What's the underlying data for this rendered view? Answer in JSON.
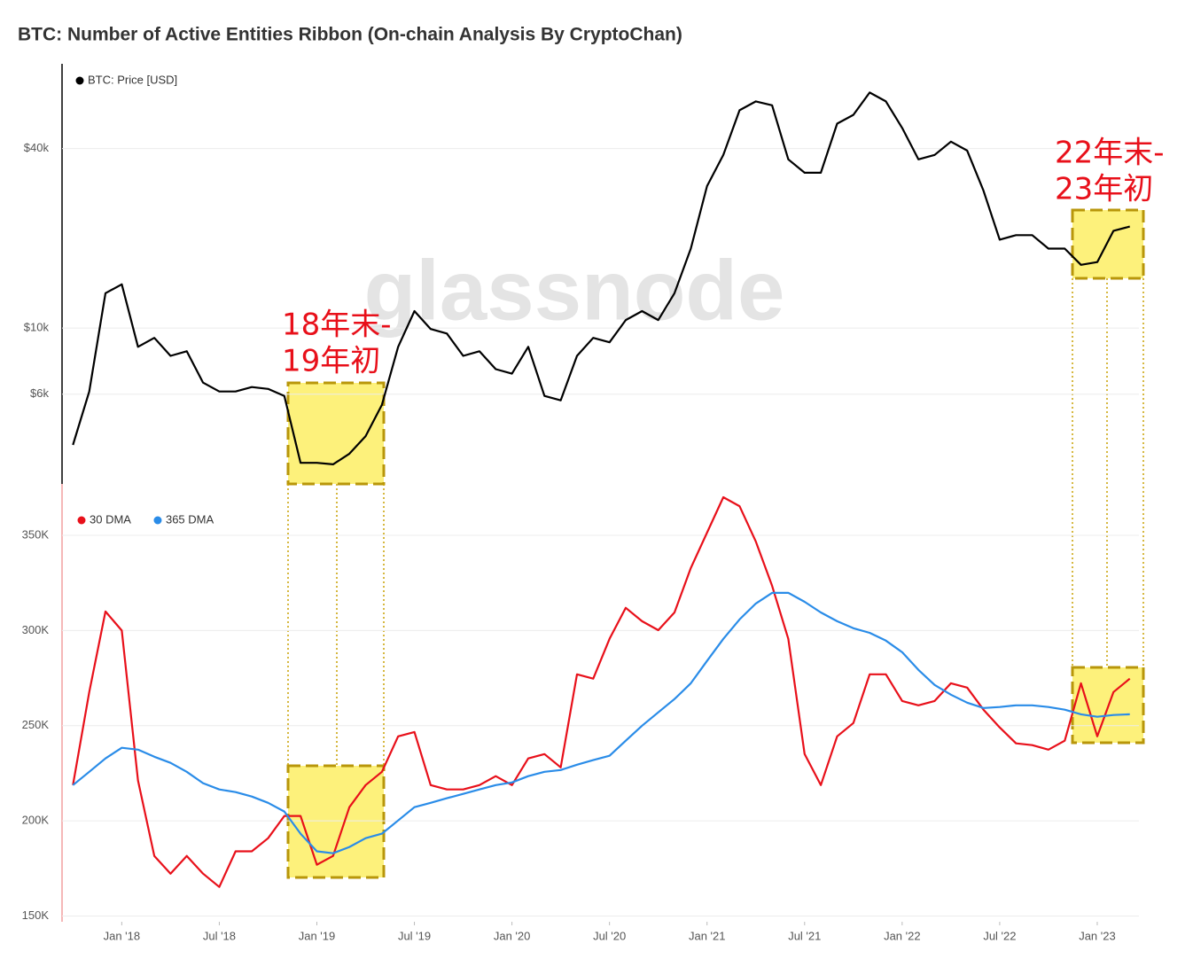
{
  "title": "BTC: Number of Active Entities Ribbon (On-chain Analysis By CryptoChan)",
  "watermark": "glassnode",
  "chart_data": [
    {
      "type": "line",
      "yscale": "log",
      "grid": true,
      "legend": "top-left",
      "annotations": [
        [
          "18年末-",
          "19年初"
        ],
        [
          "22年末-",
          "23年初"
        ]
      ],
      "xlim": [
        "2017-09",
        "2023-04"
      ],
      "x": [
        "2017-10",
        "2017-11",
        "2017-12",
        "2018-01",
        "2018-02",
        "2018-03",
        "2018-04",
        "2018-05",
        "2018-06",
        "2018-07",
        "2018-08",
        "2018-09",
        "2018-10",
        "2018-11",
        "2018-12",
        "2019-01",
        "2019-02",
        "2019-03",
        "2019-04",
        "2019-05",
        "2019-06",
        "2019-07",
        "2019-08",
        "2019-09",
        "2019-10",
        "2019-11",
        "2019-12",
        "2020-01",
        "2020-02",
        "2020-03",
        "2020-04",
        "2020-05",
        "2020-06",
        "2020-07",
        "2020-08",
        "2020-09",
        "2020-10",
        "2020-11",
        "2020-12",
        "2021-01",
        "2021-02",
        "2021-03",
        "2021-04",
        "2021-05",
        "2021-06",
        "2021-07",
        "2021-08",
        "2021-09",
        "2021-10",
        "2021-11",
        "2021-12",
        "2022-01",
        "2022-02",
        "2022-03",
        "2022-04",
        "2022-05",
        "2022-06",
        "2022-07",
        "2022-08",
        "2022-09",
        "2022-10",
        "2022-11",
        "2022-12",
        "2023-01",
        "2023-02",
        "2023-03"
      ],
      "ylim": [
        3000,
        77000
      ],
      "yticks": [
        {
          "value": 6000,
          "label": "$6k"
        },
        {
          "value": 10000,
          "label": "$10k"
        },
        {
          "value": 40000,
          "label": "$40k"
        }
      ],
      "series": [
        {
          "name": "BTC: Price [USD]",
          "color": "#000000",
          "values": [
            4055,
            6125,
            13090,
            14020,
            8650,
            9270,
            8070,
            8360,
            6560,
            6125,
            6125,
            6340,
            6250,
            5920,
            3530,
            3530,
            3490,
            3790,
            4340,
            5530,
            8650,
            11400,
            9930,
            9590,
            8070,
            8360,
            7280,
            7030,
            8650,
            5920,
            5720,
            8070,
            9270,
            8960,
            10640,
            11400,
            10640,
            13090,
            18470,
            29940,
            38100,
            53800,
            57600,
            55900,
            36800,
            33200,
            33200,
            48500,
            51900,
            61700,
            57600,
            46900,
            36800,
            38100,
            42200,
            39400,
            28900,
            19800,
            20500,
            20500,
            18470,
            18470,
            16300,
            16650,
            21200,
            21900
          ]
        }
      ]
    },
    {
      "type": "line",
      "grid": true,
      "legend": "top-left",
      "xlim": [
        "2017-09",
        "2023-04"
      ],
      "x": [
        "2017-10",
        "2017-11",
        "2017-12",
        "2018-01",
        "2018-02",
        "2018-03",
        "2018-04",
        "2018-05",
        "2018-06",
        "2018-07",
        "2018-08",
        "2018-09",
        "2018-10",
        "2018-11",
        "2018-12",
        "2019-01",
        "2019-02",
        "2019-03",
        "2019-04",
        "2019-05",
        "2019-06",
        "2019-07",
        "2019-08",
        "2019-09",
        "2019-10",
        "2019-11",
        "2019-12",
        "2020-01",
        "2020-02",
        "2020-03",
        "2020-04",
        "2020-05",
        "2020-06",
        "2020-07",
        "2020-08",
        "2020-09",
        "2020-10",
        "2020-11",
        "2020-12",
        "2021-01",
        "2021-02",
        "2021-03",
        "2021-04",
        "2021-05",
        "2021-06",
        "2021-07",
        "2021-08",
        "2021-09",
        "2021-10",
        "2021-11",
        "2021-12",
        "2022-01",
        "2022-02",
        "2022-03",
        "2022-04",
        "2022-05",
        "2022-06",
        "2022-07",
        "2022-08",
        "2022-09",
        "2022-10",
        "2022-11",
        "2022-12",
        "2023-01",
        "2023-02",
        "2023-03"
      ],
      "xticks": [
        {
          "value": "2018-01",
          "label": "Jan '18"
        },
        {
          "value": "2018-07",
          "label": "Jul '18"
        },
        {
          "value": "2019-01",
          "label": "Jan '19"
        },
        {
          "value": "2019-07",
          "label": "Jul '19"
        },
        {
          "value": "2020-01",
          "label": "Jan '20"
        },
        {
          "value": "2020-07",
          "label": "Jul '20"
        },
        {
          "value": "2021-01",
          "label": "Jan '21"
        },
        {
          "value": "2021-07",
          "label": "Jul '21"
        },
        {
          "value": "2022-01",
          "label": "Jan '22"
        },
        {
          "value": "2022-07",
          "label": "Jul '22"
        },
        {
          "value": "2023-01",
          "label": "Jan '23"
        }
      ],
      "ylim": [
        147000,
        377000
      ],
      "yticks": [
        {
          "value": 150000,
          "label": "150K"
        },
        {
          "value": 200000,
          "label": "200K"
        },
        {
          "value": 250000,
          "label": "250K"
        },
        {
          "value": 300000,
          "label": "300K"
        },
        {
          "value": 350000,
          "label": "350K"
        }
      ],
      "series": [
        {
          "name": "30 DMA",
          "color": "#e8101a",
          "values": [
            218800,
            267700,
            310000,
            300000,
            221200,
            181600,
            172300,
            181600,
            172300,
            165300,
            184000,
            184000,
            190900,
            202600,
            202600,
            177000,
            181600,
            207200,
            218800,
            225800,
            244400,
            246700,
            218800,
            216500,
            216500,
            218800,
            223500,
            218800,
            232800,
            235100,
            228100,
            277000,
            274700,
            295600,
            311900,
            304900,
            300200,
            309500,
            332800,
            351400,
            370000,
            365300,
            346700,
            323500,
            295600,
            235100,
            218800,
            244400,
            251400,
            277000,
            277000,
            263000,
            260700,
            263000,
            272300,
            270000,
            258400,
            249100,
            240700,
            239800,
            237400,
            242100,
            272300,
            244400,
            267700,
            274700
          ]
        },
        {
          "name": "365 DMA",
          "color": "#2a8ce8",
          "values": [
            218800,
            225800,
            232800,
            238400,
            237400,
            233700,
            230500,
            225800,
            219800,
            216500,
            215100,
            212800,
            209500,
            204900,
            193300,
            184000,
            183000,
            186300,
            190900,
            193300,
            200200,
            207200,
            209500,
            211900,
            214200,
            216500,
            218800,
            220200,
            223500,
            225800,
            226700,
            229500,
            231900,
            234200,
            242100,
            250000,
            257000,
            264000,
            272300,
            284000,
            295600,
            305800,
            314200,
            319800,
            319800,
            315100,
            309500,
            304900,
            301200,
            298800,
            294700,
            288600,
            279300,
            271400,
            266300,
            262100,
            259300,
            259800,
            260700,
            260700,
            259800,
            258400,
            256000,
            254700,
            255600,
            256000
          ]
        }
      ]
    }
  ]
}
